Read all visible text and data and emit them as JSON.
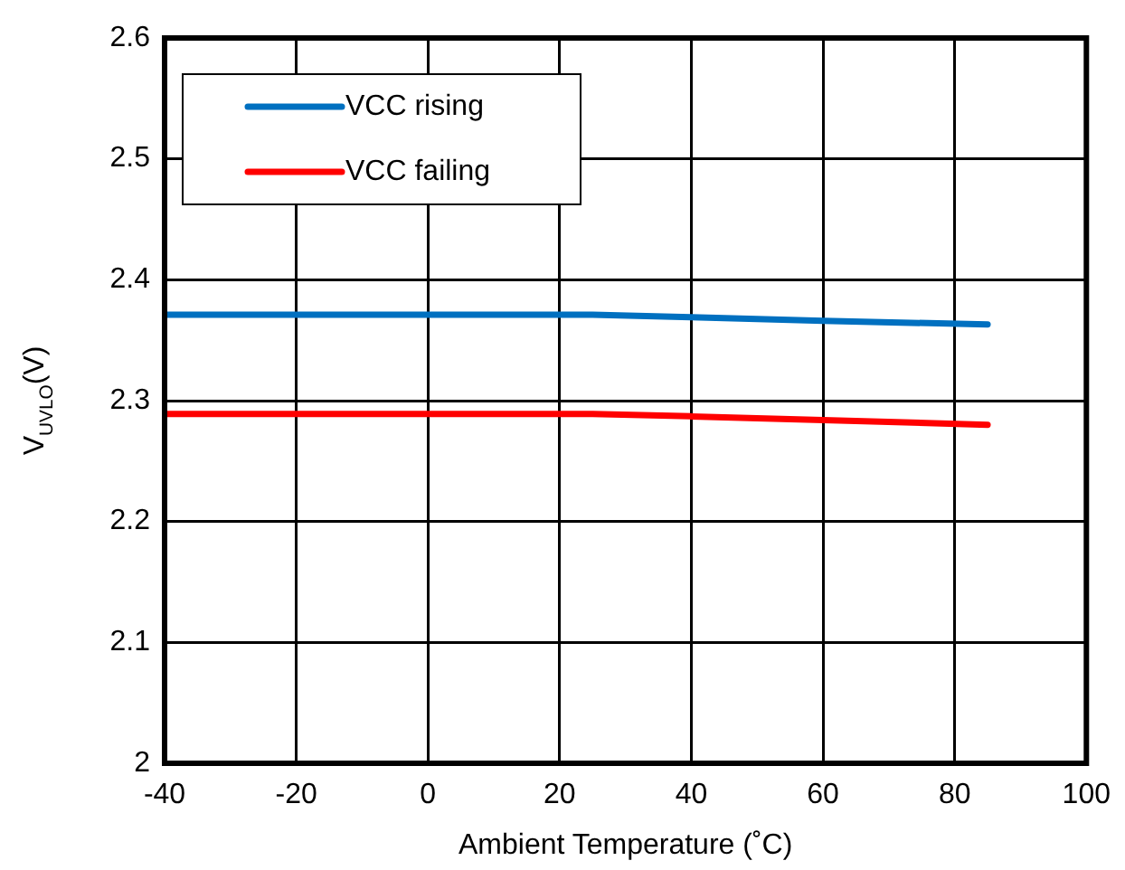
{
  "chart_data": {
    "type": "line",
    "xlabel": "Ambient Temperature (˚C)",
    "ylabel": "V$_{UVLO}$(V)",
    "x": [
      -40,
      25,
      40,
      60,
      85
    ],
    "series": [
      {
        "name": "VCC rising",
        "color": "#0070c0",
        "values": [
          2.371,
          2.371,
          2.369,
          2.366,
          2.363
        ]
      },
      {
        "name": "VCC failing",
        "color": "#ff0000",
        "values": [
          2.289,
          2.289,
          2.287,
          2.284,
          2.28
        ]
      }
    ],
    "xlim": [
      -40,
      100
    ],
    "xticks": [
      -40,
      -20,
      0,
      20,
      40,
      60,
      80,
      100
    ],
    "ylim": [
      2,
      2.6
    ],
    "yticks": [
      2,
      2.1,
      2.2,
      2.3,
      2.4,
      2.5,
      2.6
    ],
    "grid": true,
    "legend": "top left",
    "marker": "none",
    "line_style": "solid"
  }
}
